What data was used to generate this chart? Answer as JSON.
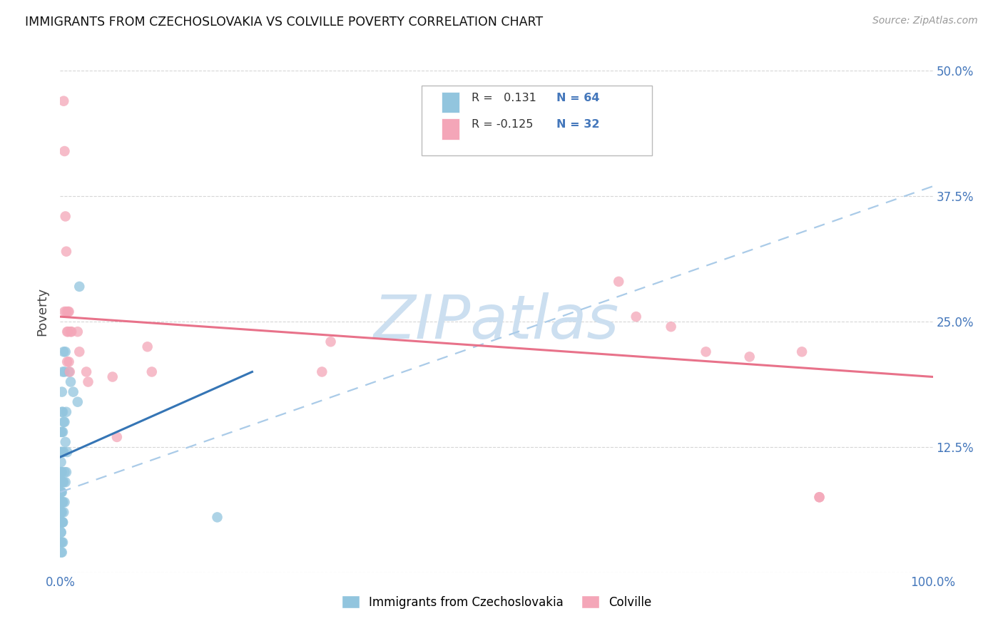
{
  "title": "IMMIGRANTS FROM CZECHOSLOVAKIA VS COLVILLE POVERTY CORRELATION CHART",
  "source": "Source: ZipAtlas.com",
  "ylabel": "Poverty",
  "xlim": [
    0.0,
    1.0
  ],
  "ylim": [
    0.0,
    0.52
  ],
  "blue_color": "#92c5de",
  "pink_color": "#f4a6b8",
  "blue_line_color": "#3575b5",
  "pink_line_color": "#e8728a",
  "dashed_line_color": "#aacbe8",
  "watermark": "ZIPatlas",
  "watermark_color": "#ccdff0",
  "legend_label1": "Immigrants from Czechoslovakia",
  "legend_label2": "Colville",
  "blue_dots_x": [
    0.001,
    0.001,
    0.001,
    0.001,
    0.001,
    0.001,
    0.001,
    0.001,
    0.001,
    0.001,
    0.002,
    0.002,
    0.002,
    0.002,
    0.002,
    0.002,
    0.002,
    0.002,
    0.003,
    0.003,
    0.003,
    0.003,
    0.003,
    0.003,
    0.003,
    0.004,
    0.004,
    0.004,
    0.004,
    0.004,
    0.005,
    0.005,
    0.005,
    0.005,
    0.006,
    0.006,
    0.006,
    0.007,
    0.007,
    0.008,
    0.01,
    0.012,
    0.015,
    0.02,
    0.022,
    0.001,
    0.001,
    0.001,
    0.001,
    0.001,
    0.001,
    0.001,
    0.001,
    0.001,
    0.001,
    0.002,
    0.002,
    0.002,
    0.002,
    0.002,
    0.003,
    0.003,
    0.003,
    0.18
  ],
  "blue_dots_y": [
    0.04,
    0.05,
    0.06,
    0.07,
    0.08,
    0.09,
    0.1,
    0.11,
    0.12,
    0.14,
    0.05,
    0.06,
    0.08,
    0.1,
    0.12,
    0.14,
    0.16,
    0.18,
    0.05,
    0.07,
    0.09,
    0.12,
    0.14,
    0.16,
    0.2,
    0.06,
    0.09,
    0.12,
    0.15,
    0.22,
    0.07,
    0.1,
    0.15,
    0.2,
    0.09,
    0.13,
    0.22,
    0.1,
    0.16,
    0.12,
    0.2,
    0.19,
    0.18,
    0.17,
    0.285,
    0.02,
    0.03,
    0.04,
    0.05,
    0.06,
    0.07,
    0.08,
    0.09,
    0.1,
    0.12,
    0.02,
    0.03,
    0.05,
    0.07,
    0.09,
    0.03,
    0.05,
    0.07,
    0.055
  ],
  "pink_dots_x": [
    0.004,
    0.005,
    0.005,
    0.006,
    0.007,
    0.007,
    0.008,
    0.008,
    0.009,
    0.009,
    0.01,
    0.01,
    0.011,
    0.012,
    0.013,
    0.02,
    0.022,
    0.03,
    0.032,
    0.06,
    0.065,
    0.1,
    0.105,
    0.3,
    0.31,
    0.64,
    0.66,
    0.7,
    0.74,
    0.79,
    0.85,
    0.87,
    0.87
  ],
  "pink_dots_y": [
    0.47,
    0.42,
    0.26,
    0.355,
    0.32,
    0.26,
    0.21,
    0.24,
    0.24,
    0.26,
    0.21,
    0.26,
    0.2,
    0.24,
    0.24,
    0.24,
    0.22,
    0.2,
    0.19,
    0.195,
    0.135,
    0.225,
    0.2,
    0.2,
    0.23,
    0.29,
    0.255,
    0.245,
    0.22,
    0.215,
    0.22,
    0.075,
    0.075
  ]
}
